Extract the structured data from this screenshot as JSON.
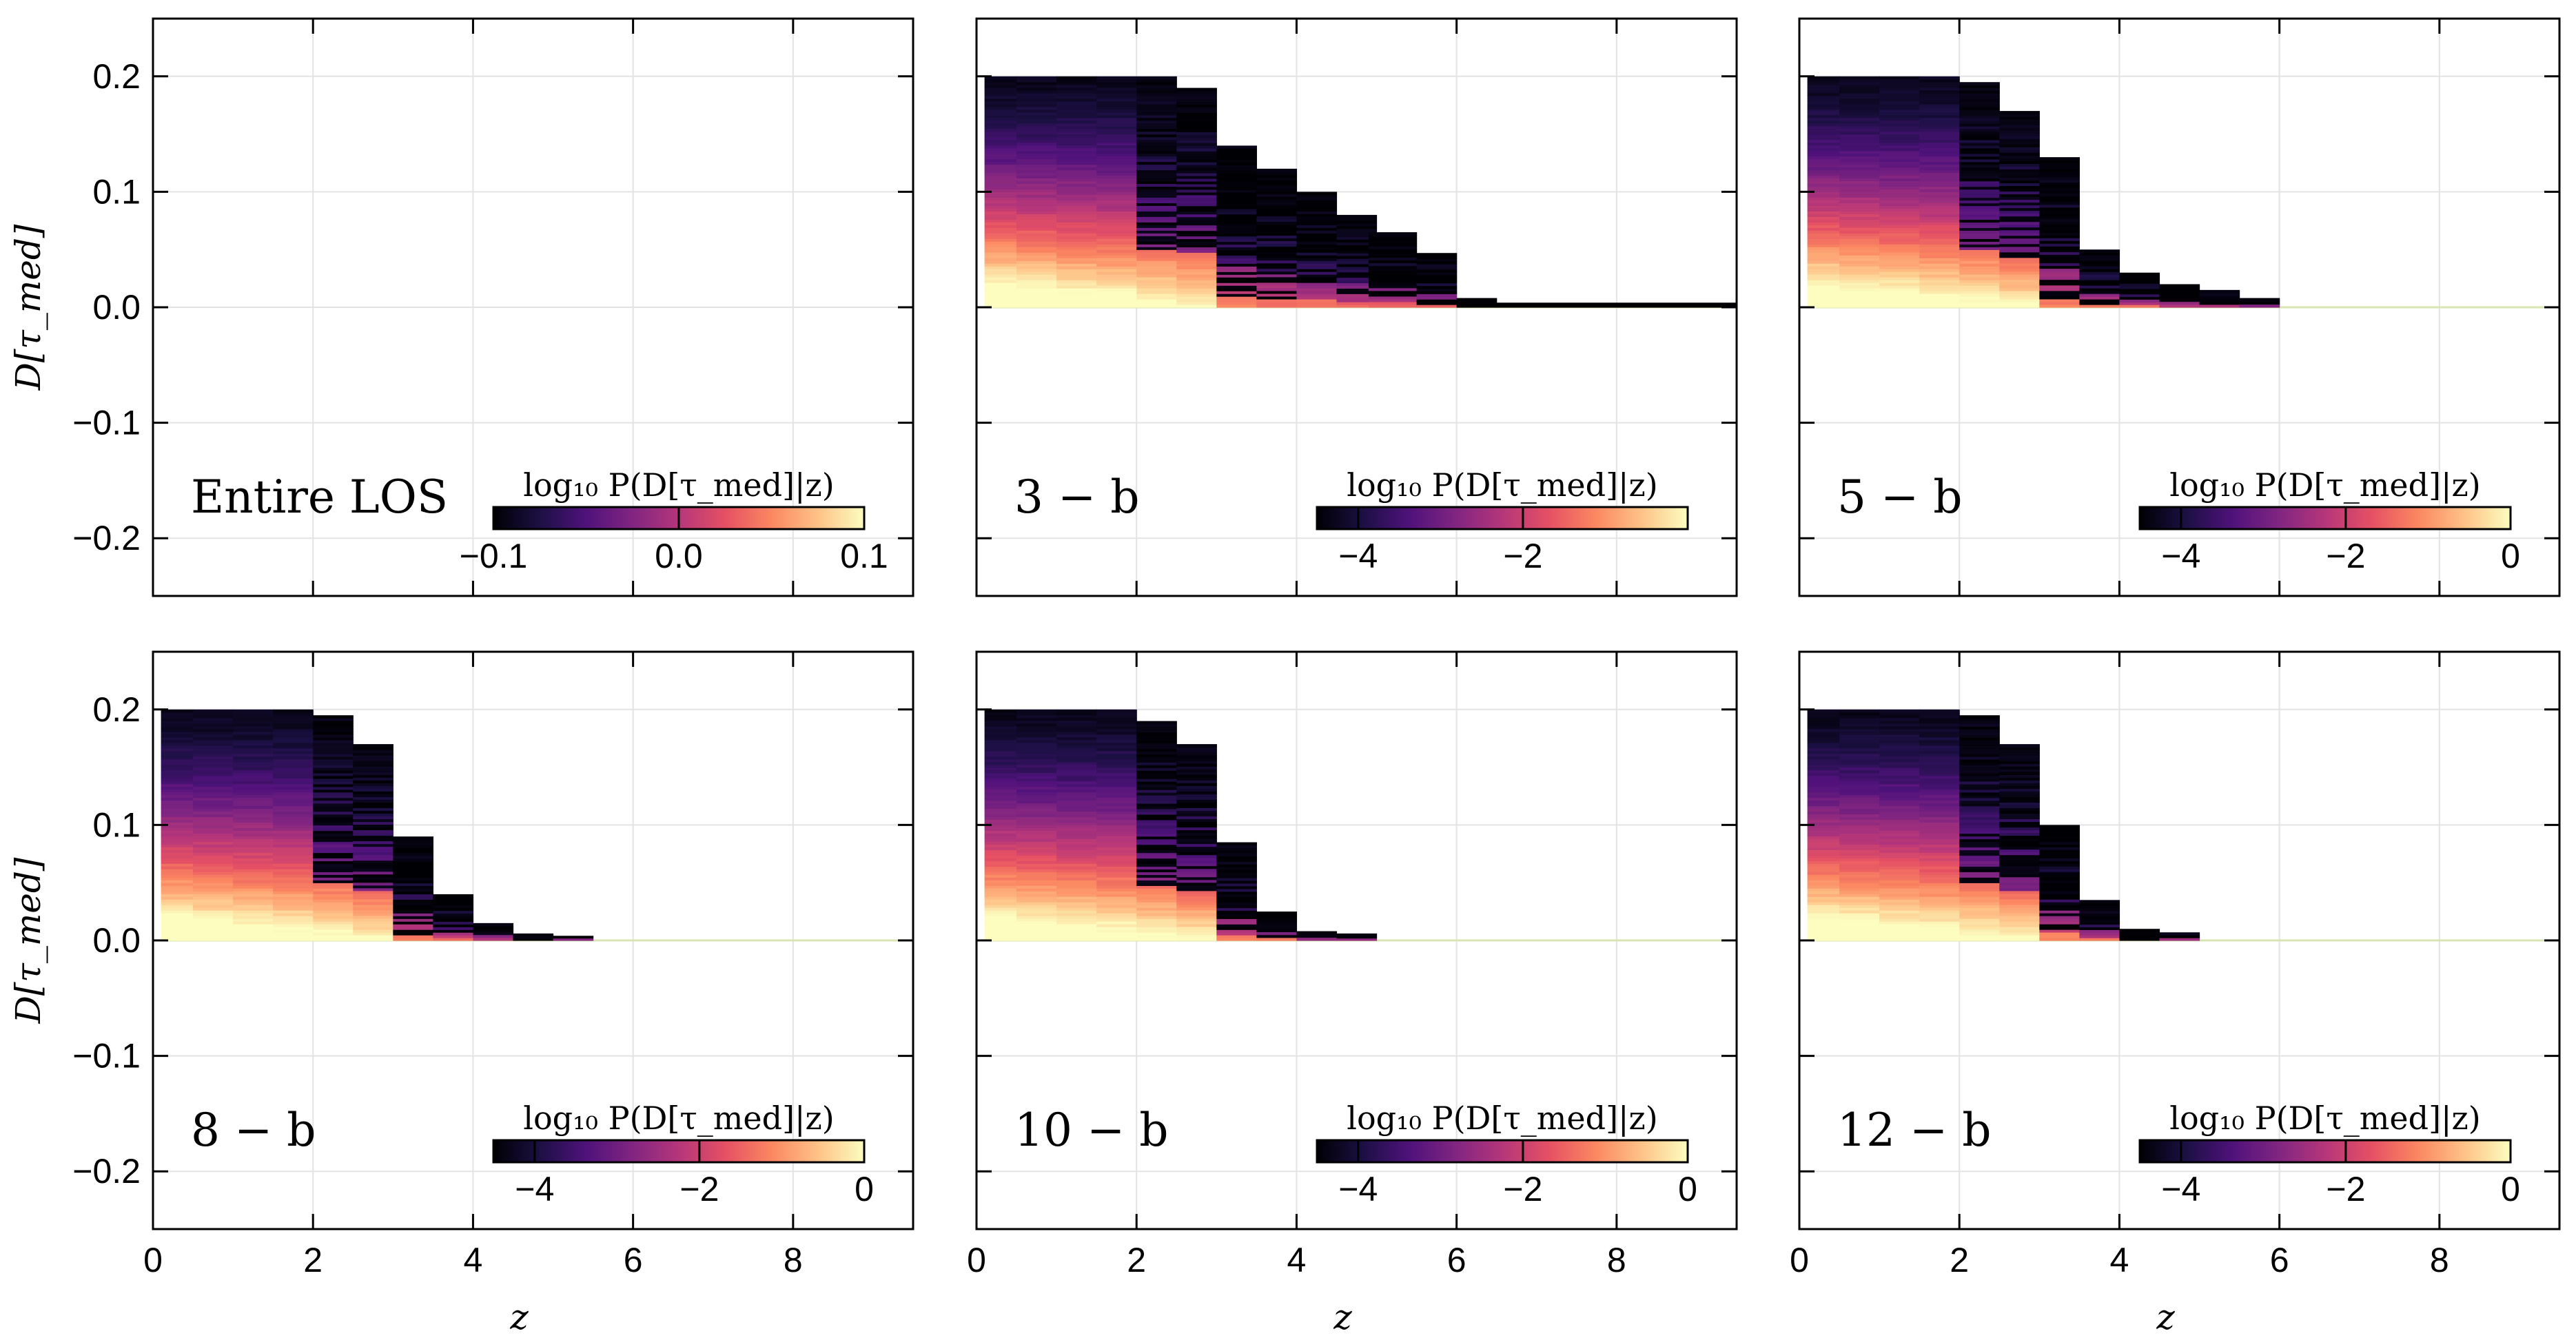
{
  "figure": {
    "ylabel": "D[τ_med]",
    "xlabel": "z"
  },
  "colors": {
    "colormap": [
      "#000004",
      "#1c1044",
      "#4f127b",
      "#812581",
      "#b5367a",
      "#e55064",
      "#fb8761",
      "#fec287",
      "#fcfdbf"
    ],
    "grid": "#e3e3e3",
    "zero_line": "#d9e5b0"
  },
  "chart_data": [
    {
      "type": "heatmap",
      "panel_label": "Entire LOS",
      "xlabel": "",
      "ylabel": "D[τ_med]",
      "xlim": [
        0,
        9.5
      ],
      "ylim": [
        -0.25,
        0.25
      ],
      "x_ticks": [],
      "y_ticks": [
        "0.2",
        "0.1",
        "0.0",
        "−0.1",
        "−0.2"
      ],
      "grid": true,
      "colorbar": {
        "label": "log₁₀ P(D[τ_med]|z)",
        "range": [
          -0.1,
          0.1
        ],
        "ticks": [
          "−0.1",
          "0.0",
          "0.1"
        ]
      },
      "columns": []
    },
    {
      "type": "heatmap",
      "panel_label": "3 − b",
      "xlabel": "",
      "ylabel": "",
      "xlim": [
        0,
        9.5
      ],
      "ylim": [
        -0.25,
        0.25
      ],
      "x_ticks": [],
      "y_ticks": [],
      "grid": true,
      "colorbar": {
        "label": "log₁₀ P(D[τ_med]|z)",
        "range": [
          -4.5,
          0
        ],
        "ticks": [
          "−4",
          "−2"
        ]
      },
      "columns": [
        {
          "x0": 0.1,
          "x1": 0.5,
          "dmax": 0.2
        },
        {
          "x0": 0.5,
          "x1": 1.0,
          "dmax": 0.2
        },
        {
          "x0": 1.0,
          "x1": 1.5,
          "dmax": 0.2
        },
        {
          "x0": 1.5,
          "x1": 2.0,
          "dmax": 0.2
        },
        {
          "x0": 2.0,
          "x1": 2.5,
          "dmax": 0.2
        },
        {
          "x0": 2.5,
          "x1": 3.0,
          "dmax": 0.19
        },
        {
          "x0": 3.0,
          "x1": 3.5,
          "dmax": 0.14
        },
        {
          "x0": 3.5,
          "x1": 4.0,
          "dmax": 0.12
        },
        {
          "x0": 4.0,
          "x1": 4.5,
          "dmax": 0.1
        },
        {
          "x0": 4.5,
          "x1": 5.0,
          "dmax": 0.08
        },
        {
          "x0": 4.9,
          "x1": 5.5,
          "dmax": 0.065
        },
        {
          "x0": 5.5,
          "x1": 6.0,
          "dmax": 0.047
        },
        {
          "x0": 6.0,
          "x1": 6.5,
          "dmax": 0.008
        },
        {
          "x0": 6.5,
          "x1": 9.5,
          "dmax": 0.004
        }
      ]
    },
    {
      "type": "heatmap",
      "panel_label": "5 − b",
      "xlabel": "",
      "ylabel": "",
      "xlim": [
        0,
        9.5
      ],
      "ylim": [
        -0.25,
        0.25
      ],
      "x_ticks": [],
      "y_ticks": [],
      "grid": true,
      "colorbar": {
        "label": "log₁₀ P(D[τ_med]|z)",
        "range": [
          -4.5,
          0
        ],
        "ticks": [
          "−4",
          "−2",
          "0"
        ]
      },
      "columns": [
        {
          "x0": 0.1,
          "x1": 0.5,
          "dmax": 0.2
        },
        {
          "x0": 0.5,
          "x1": 1.0,
          "dmax": 0.2
        },
        {
          "x0": 1.0,
          "x1": 1.5,
          "dmax": 0.2
        },
        {
          "x0": 1.5,
          "x1": 2.0,
          "dmax": 0.2
        },
        {
          "x0": 2.0,
          "x1": 2.5,
          "dmax": 0.195
        },
        {
          "x0": 2.5,
          "x1": 3.0,
          "dmax": 0.17
        },
        {
          "x0": 3.0,
          "x1": 3.5,
          "dmax": 0.13
        },
        {
          "x0": 3.5,
          "x1": 4.0,
          "dmax": 0.05
        },
        {
          "x0": 4.0,
          "x1": 4.5,
          "dmax": 0.03
        },
        {
          "x0": 4.5,
          "x1": 5.0,
          "dmax": 0.02
        },
        {
          "x0": 5.0,
          "x1": 5.5,
          "dmax": 0.015
        },
        {
          "x0": 5.5,
          "x1": 6.0,
          "dmax": 0.008
        }
      ]
    },
    {
      "type": "heatmap",
      "panel_label": "8 − b",
      "xlabel": "z",
      "ylabel": "D[τ_med]",
      "xlim": [
        0,
        9.5
      ],
      "ylim": [
        -0.25,
        0.25
      ],
      "x_ticks": [
        "0",
        "2",
        "4",
        "6",
        "8"
      ],
      "y_ticks": [
        "0.2",
        "0.1",
        "0.0",
        "−0.1",
        "−0.2"
      ],
      "grid": true,
      "colorbar": {
        "label": "log₁₀ P(D[τ_med]|z)",
        "range": [
          -4.5,
          0
        ],
        "ticks": [
          "−4",
          "−2",
          "0"
        ]
      },
      "columns": [
        {
          "x0": 0.1,
          "x1": 0.5,
          "dmax": 0.2
        },
        {
          "x0": 0.5,
          "x1": 1.0,
          "dmax": 0.2
        },
        {
          "x0": 1.0,
          "x1": 1.5,
          "dmax": 0.2
        },
        {
          "x0": 1.5,
          "x1": 2.0,
          "dmax": 0.2
        },
        {
          "x0": 2.0,
          "x1": 2.5,
          "dmax": 0.195
        },
        {
          "x0": 2.5,
          "x1": 3.0,
          "dmax": 0.17
        },
        {
          "x0": 3.0,
          "x1": 3.5,
          "dmax": 0.09
        },
        {
          "x0": 3.5,
          "x1": 4.0,
          "dmax": 0.04
        },
        {
          "x0": 4.0,
          "x1": 4.5,
          "dmax": 0.015
        },
        {
          "x0": 4.5,
          "x1": 5.0,
          "dmax": 0.006
        },
        {
          "x0": 5.0,
          "x1": 5.5,
          "dmax": 0.004
        }
      ]
    },
    {
      "type": "heatmap",
      "panel_label": "10 − b",
      "xlabel": "z",
      "ylabel": "",
      "xlim": [
        0,
        9.5
      ],
      "ylim": [
        -0.25,
        0.25
      ],
      "x_ticks": [
        "0",
        "2",
        "4",
        "6",
        "8"
      ],
      "y_ticks": [],
      "grid": true,
      "colorbar": {
        "label": "log₁₀ P(D[τ_med]|z)",
        "range": [
          -4.5,
          0
        ],
        "ticks": [
          "−4",
          "−2",
          "0"
        ]
      },
      "columns": [
        {
          "x0": 0.1,
          "x1": 0.5,
          "dmax": 0.2
        },
        {
          "x0": 0.5,
          "x1": 1.0,
          "dmax": 0.2
        },
        {
          "x0": 1.0,
          "x1": 1.5,
          "dmax": 0.2
        },
        {
          "x0": 1.5,
          "x1": 2.0,
          "dmax": 0.2
        },
        {
          "x0": 2.0,
          "x1": 2.5,
          "dmax": 0.19
        },
        {
          "x0": 2.5,
          "x1": 3.0,
          "dmax": 0.17
        },
        {
          "x0": 3.0,
          "x1": 3.5,
          "dmax": 0.085
        },
        {
          "x0": 3.5,
          "x1": 4.0,
          "dmax": 0.025
        },
        {
          "x0": 4.0,
          "x1": 4.5,
          "dmax": 0.008
        },
        {
          "x0": 4.5,
          "x1": 5.0,
          "dmax": 0.006
        }
      ]
    },
    {
      "type": "heatmap",
      "panel_label": "12 − b",
      "xlabel": "z",
      "ylabel": "",
      "xlim": [
        0,
        9.5
      ],
      "ylim": [
        -0.25,
        0.25
      ],
      "x_ticks": [
        "0",
        "2",
        "4",
        "6",
        "8"
      ],
      "y_ticks": [],
      "grid": true,
      "colorbar": {
        "label": "log₁₀ P(D[τ_med]|z)",
        "range": [
          -4.5,
          0
        ],
        "ticks": [
          "−4",
          "−2",
          "0"
        ]
      },
      "columns": [
        {
          "x0": 0.1,
          "x1": 0.5,
          "dmax": 0.2
        },
        {
          "x0": 0.5,
          "x1": 1.0,
          "dmax": 0.2
        },
        {
          "x0": 1.0,
          "x1": 1.5,
          "dmax": 0.2
        },
        {
          "x0": 1.5,
          "x1": 2.0,
          "dmax": 0.2
        },
        {
          "x0": 2.0,
          "x1": 2.5,
          "dmax": 0.195
        },
        {
          "x0": 2.5,
          "x1": 3.0,
          "dmax": 0.17
        },
        {
          "x0": 3.0,
          "x1": 3.5,
          "dmax": 0.1
        },
        {
          "x0": 3.5,
          "x1": 4.0,
          "dmax": 0.035
        },
        {
          "x0": 4.0,
          "x1": 4.5,
          "dmax": 0.01
        },
        {
          "x0": 4.5,
          "x1": 5.0,
          "dmax": 0.007
        }
      ]
    }
  ]
}
